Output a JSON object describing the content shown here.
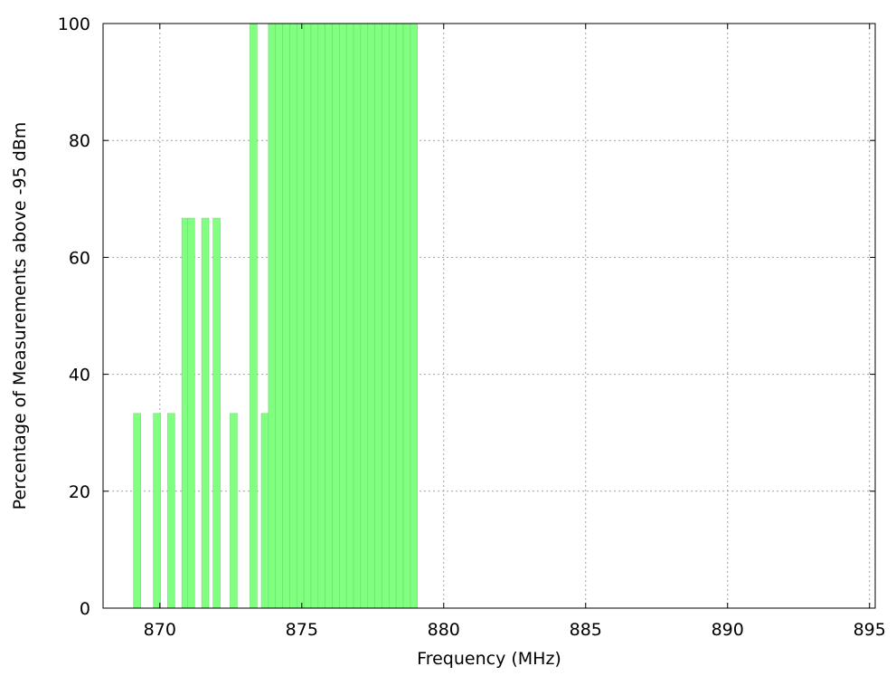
{
  "chart_data": {
    "type": "bar",
    "title": "",
    "xlabel": "Frequency (MHz)",
    "ylabel": "Percentage of Measurements above -95 dBm",
    "xlim": [
      868,
      895.2
    ],
    "ylim": [
      0,
      100
    ],
    "xticks": [
      870,
      875,
      880,
      885,
      890,
      895
    ],
    "yticks": [
      0,
      20,
      40,
      60,
      80,
      100
    ],
    "grid": true,
    "bar_color": "#80ff80",
    "bar_width_mhz": 0.25,
    "series": [
      {
        "x": [
          869.2,
          869.9,
          870.4,
          870.9,
          871.1,
          871.6,
          872.0,
          872.6,
          873.3,
          873.7,
          873.95,
          874.2,
          874.45,
          874.7,
          874.95,
          875.2,
          875.45,
          875.7,
          875.95,
          876.2,
          876.45,
          876.7,
          876.95,
          877.2,
          877.45,
          877.7,
          877.95,
          878.2,
          878.45,
          878.7,
          878.95
        ],
        "values": [
          33.3,
          33.3,
          33.3,
          66.7,
          66.7,
          66.7,
          66.7,
          33.3,
          100,
          33.3,
          100,
          100,
          100,
          100,
          100,
          100,
          100,
          100,
          100,
          100,
          100,
          100,
          100,
          100,
          100,
          100,
          100,
          100,
          100,
          100,
          100
        ]
      }
    ]
  }
}
